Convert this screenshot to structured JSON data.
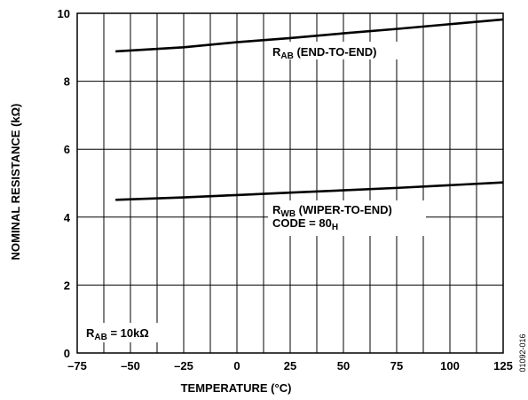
{
  "chart_data": {
    "type": "line",
    "xlabel": "TEMPERATURE (°C)",
    "ylabel": "NOMINAL RESISTANCE (kΩ)",
    "xlim": [
      -75,
      125
    ],
    "ylim": [
      0,
      10
    ],
    "x_ticks": [
      "–75",
      "–50",
      "–25",
      "0",
      "25",
      "50",
      "75",
      "100",
      "125"
    ],
    "x_tick_values": [
      -75,
      -50,
      -25,
      0,
      25,
      50,
      75,
      100,
      125
    ],
    "y_ticks": [
      "0",
      "2",
      "4",
      "6",
      "8",
      "10"
    ],
    "y_tick_values": [
      0,
      2,
      4,
      6,
      8,
      10
    ],
    "grid": true,
    "series": [
      {
        "name": "R_AB (END-TO-END)",
        "x": [
          -57,
          -25,
          0,
          25,
          50,
          75,
          100,
          125
        ],
        "y": [
          8.88,
          9.0,
          9.15,
          9.27,
          9.41,
          9.54,
          9.68,
          9.82
        ]
      },
      {
        "name": "R_WB (WIPER-TO-END) CODE = 80_H",
        "x": [
          -57,
          -25,
          0,
          25,
          50,
          75,
          100,
          125
        ],
        "y": [
          4.51,
          4.58,
          4.65,
          4.72,
          4.79,
          4.86,
          4.94,
          5.02
        ]
      }
    ],
    "annotations": {
      "rab_label": {
        "main": "R",
        "sub": "AB",
        "rest": " (END-TO-END)"
      },
      "rwb_label": {
        "main": "R",
        "sub": "WB",
        "rest": " (WIPER-TO-END)"
      },
      "code_label": {
        "main": "CODE = 80",
        "sub": "H"
      },
      "rab_value": {
        "main": "R",
        "sub": "AB",
        "rest": " = 10kΩ"
      }
    },
    "figure_code": "01092-016"
  }
}
